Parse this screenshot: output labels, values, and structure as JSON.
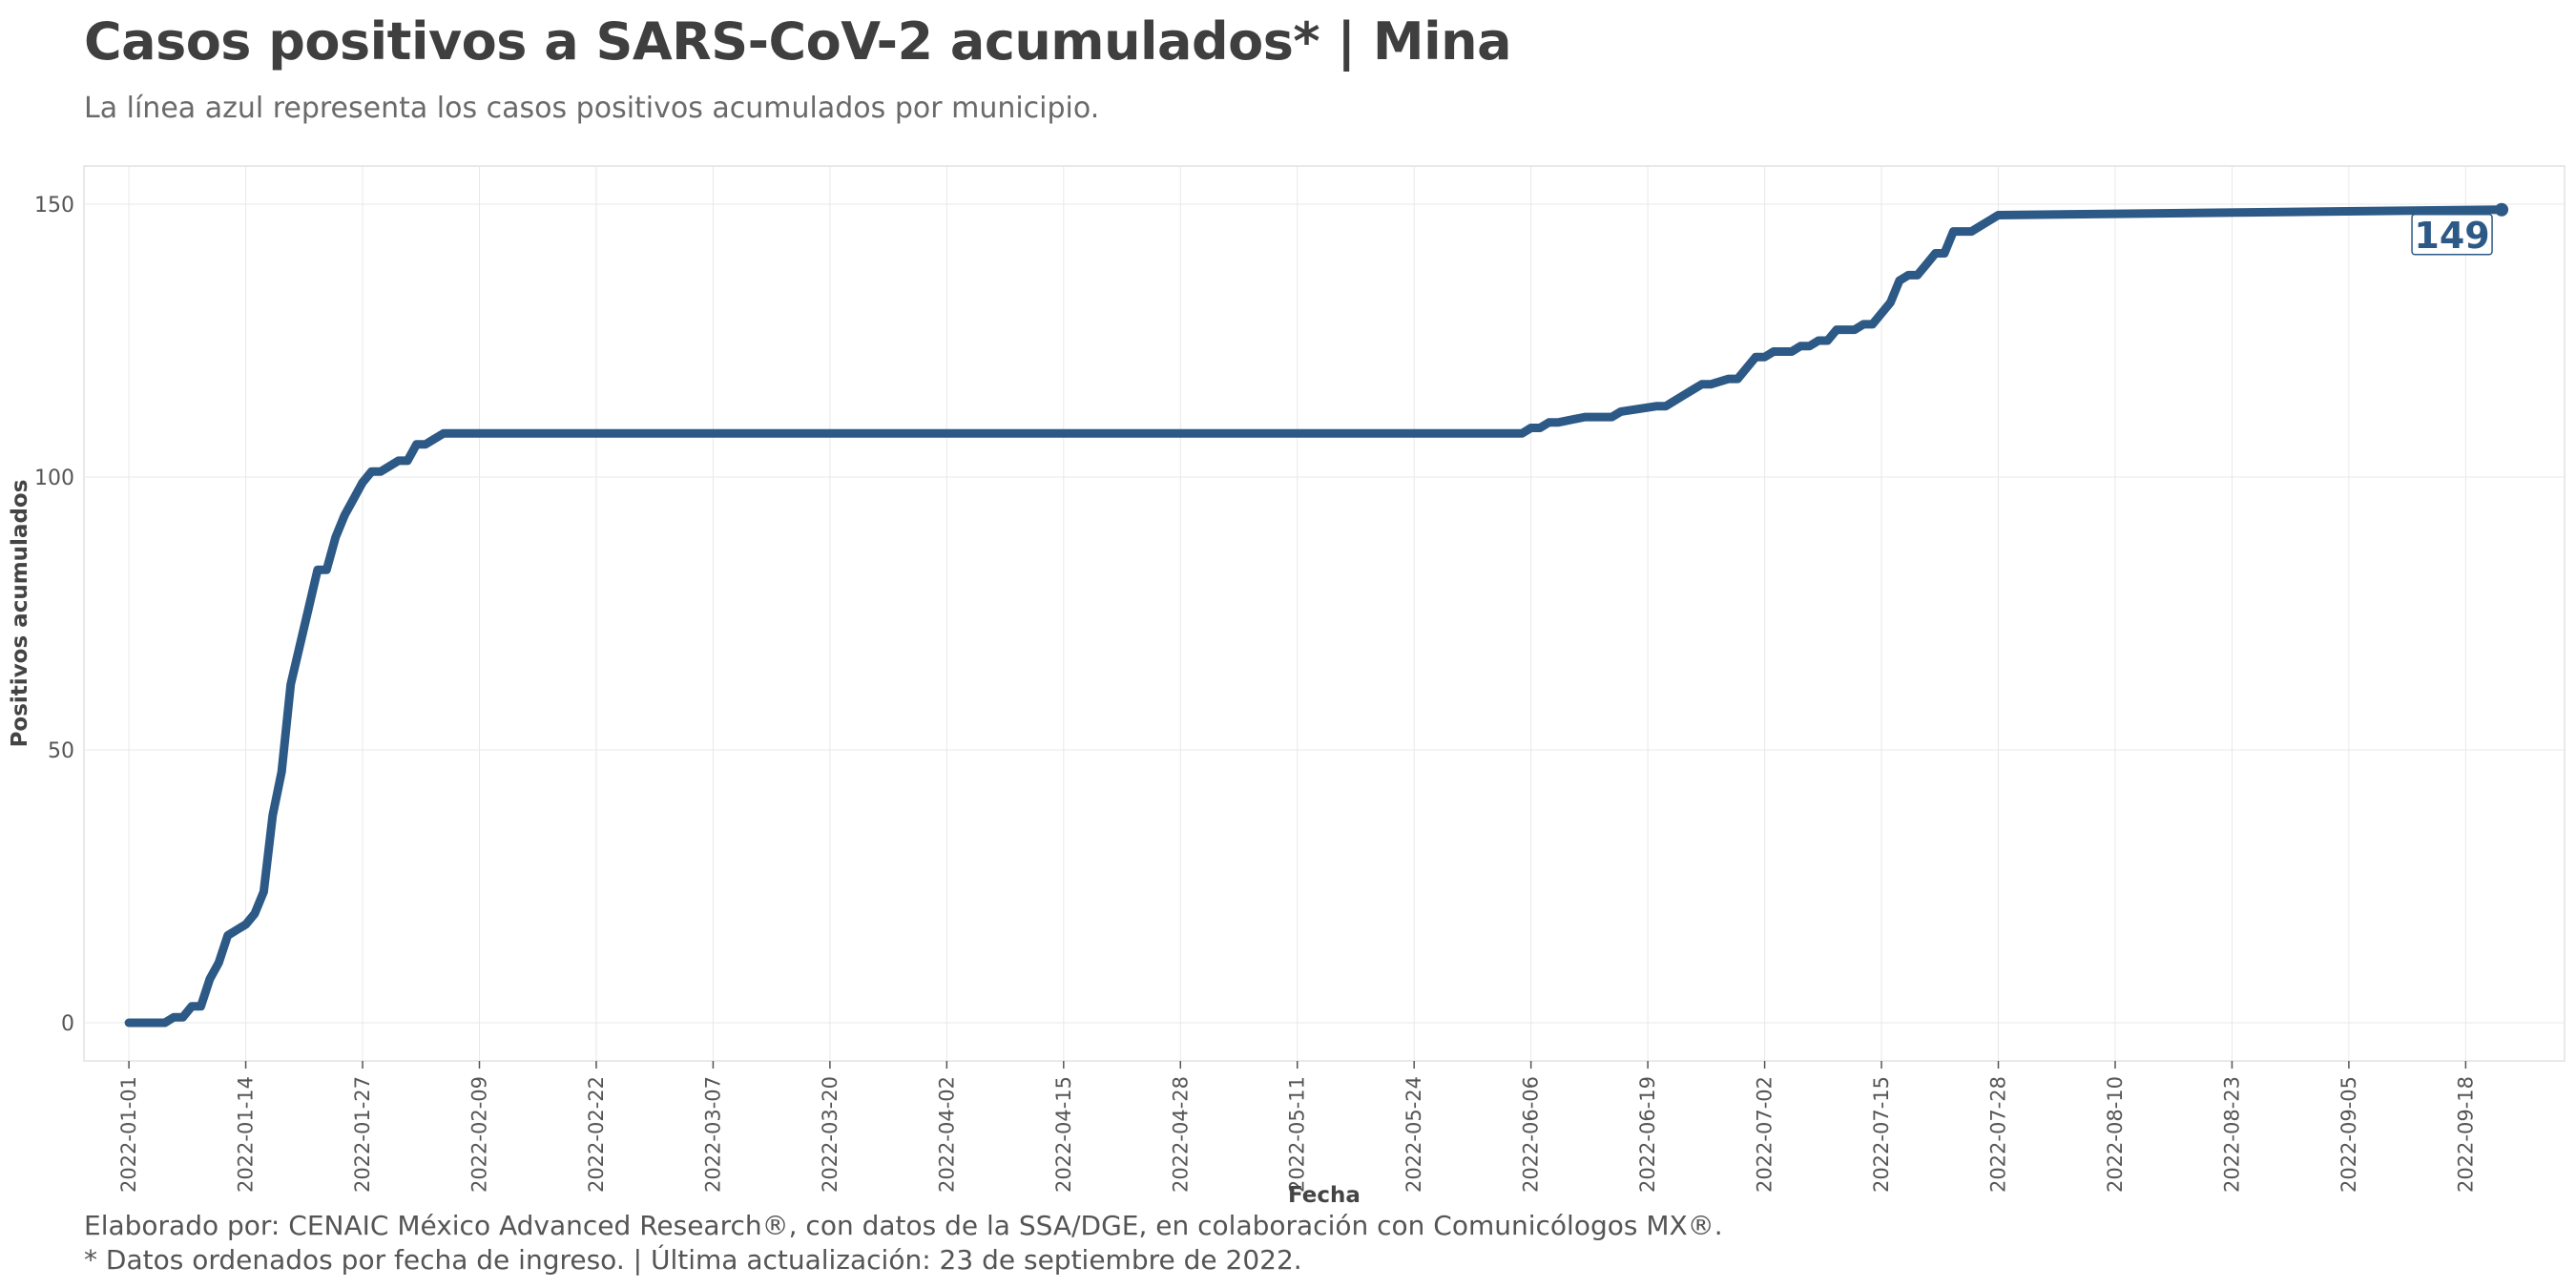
{
  "title": "Casos positivos a SARS-CoV-2 acumulados* | Mina",
  "subtitle": "La línea azul representa los casos positivos acumulados por municipio.",
  "caption_line1": "Elaborado por: CENAIC México Advanced Research®, con datos de la SSA/DGE, en colaboración con Comunicólogos MX®.",
  "caption_line2": "* Datos ordenados por fecha de ingreso. | Última actualización: 23 de septiembre de 2022.",
  "colors": {
    "line": "#2d5986",
    "grid": "#e8e8e8"
  },
  "chart_data": {
    "type": "line",
    "xlabel": "Fecha",
    "ylabel": "Positivos acumulados",
    "ylim": [
      -7,
      157
    ],
    "xlim": [
      "2021-12-27",
      "2022-09-29"
    ],
    "yticks": [
      0,
      50,
      100,
      150
    ],
    "xticks": [
      "2022-01-01",
      "2022-01-14",
      "2022-01-27",
      "2022-02-09",
      "2022-02-22",
      "2022-03-07",
      "2022-03-20",
      "2022-04-02",
      "2022-04-15",
      "2022-04-28",
      "2022-05-11",
      "2022-05-24",
      "2022-06-06",
      "2022-06-19",
      "2022-07-02",
      "2022-07-15",
      "2022-07-28",
      "2022-08-10",
      "2022-08-23",
      "2022-09-05",
      "2022-09-18"
    ],
    "last_value_label": "149",
    "series": [
      {
        "x": [
          "2022-01-01",
          "2022-01-02",
          "2022-01-03",
          "2022-01-04",
          "2022-01-05",
          "2022-01-06",
          "2022-01-07",
          "2022-01-08",
          "2022-01-09",
          "2022-01-10",
          "2022-01-11",
          "2022-01-12",
          "2022-01-13",
          "2022-01-14",
          "2022-01-15",
          "2022-01-16",
          "2022-01-17",
          "2022-01-18",
          "2022-01-19",
          "2022-01-20",
          "2022-01-21",
          "2022-01-22",
          "2022-01-23",
          "2022-01-24",
          "2022-01-25",
          "2022-01-26",
          "2022-01-27",
          "2022-01-28",
          "2022-01-29",
          "2022-01-30",
          "2022-01-31",
          "2022-02-01",
          "2022-02-02",
          "2022-02-03",
          "2022-02-04",
          "2022-02-05",
          "2022-06-04",
          "2022-06-05",
          "2022-06-06",
          "2022-06-07",
          "2022-06-08",
          "2022-06-09",
          "2022-06-12",
          "2022-06-13",
          "2022-06-14",
          "2022-06-15",
          "2022-06-16",
          "2022-06-20",
          "2022-06-21",
          "2022-06-22",
          "2022-06-23",
          "2022-06-24",
          "2022-06-25",
          "2022-06-26",
          "2022-06-28",
          "2022-06-29",
          "2022-07-01",
          "2022-07-02",
          "2022-07-03",
          "2022-07-04",
          "2022-07-05",
          "2022-07-06",
          "2022-07-07",
          "2022-07-08",
          "2022-07-09",
          "2022-07-10",
          "2022-07-11",
          "2022-07-12",
          "2022-07-13",
          "2022-07-14",
          "2022-07-15",
          "2022-07-16",
          "2022-07-17",
          "2022-07-18",
          "2022-07-19",
          "2022-07-20",
          "2022-07-21",
          "2022-07-22",
          "2022-07-23",
          "2022-07-24",
          "2022-07-25",
          "2022-07-26",
          "2022-07-27",
          "2022-07-28",
          "2022-09-22"
        ],
        "y": [
          0,
          0,
          0,
          0,
          0,
          1,
          1,
          3,
          3,
          8,
          11,
          16,
          17,
          18,
          20,
          24,
          38,
          46,
          62,
          69,
          76,
          83,
          83,
          89,
          93,
          96,
          99,
          101,
          101,
          102,
          103,
          103,
          106,
          106,
          107,
          108,
          108,
          108,
          109,
          109,
          110,
          110,
          111,
          111,
          111,
          111,
          112,
          113,
          113,
          114,
          115,
          116,
          117,
          117,
          118,
          118,
          122,
          122,
          123,
          123,
          123,
          124,
          124,
          125,
          125,
          127,
          127,
          127,
          128,
          128,
          130,
          132,
          136,
          137,
          137,
          139,
          141,
          141,
          145,
          145,
          145,
          146,
          147,
          148,
          149
        ]
      }
    ]
  }
}
